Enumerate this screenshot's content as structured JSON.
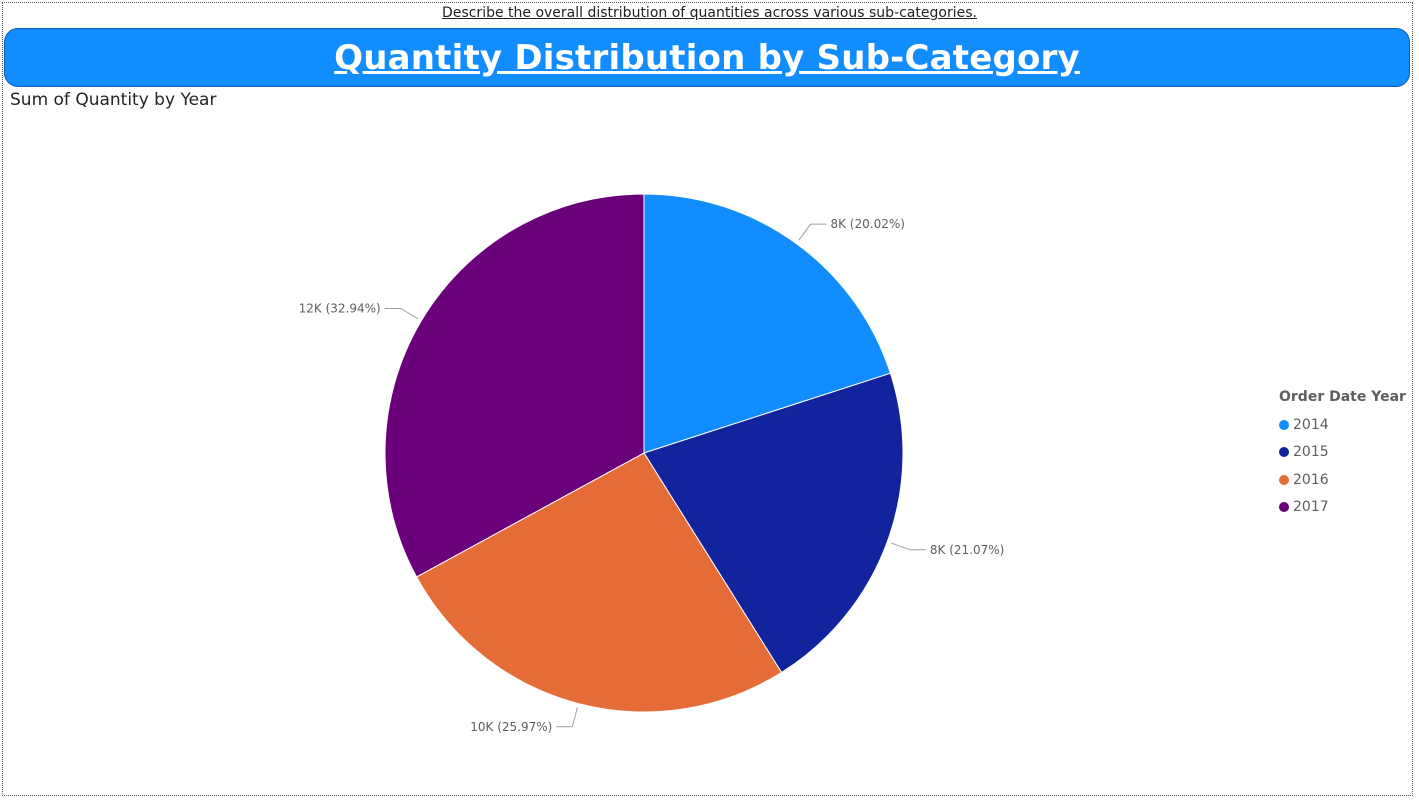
{
  "prompt_text": "Describe the overall distribution of quantities across various sub-categories.",
  "banner_title": "Quantity Distribution by Sub-Category",
  "chart_data": {
    "type": "pie",
    "title": "Sum of Quantity by Year",
    "legend_title": "Order Date Year",
    "legend_position": "right",
    "slices": [
      {
        "label": "2014",
        "value": 8,
        "percent": 20.02,
        "data_label": "8K (20.02%)",
        "color": "#118dff"
      },
      {
        "label": "2015",
        "value": 8,
        "percent": 21.07,
        "data_label": "8K (21.07%)",
        "color": "#12239e"
      },
      {
        "label": "2016",
        "value": 10,
        "percent": 25.97,
        "data_label": "10K (25.97%)",
        "color": "#e66c37"
      },
      {
        "label": "2017",
        "value": 12,
        "percent": 32.94,
        "data_label": "12K (32.94%)",
        "color": "#6b007b"
      }
    ]
  }
}
